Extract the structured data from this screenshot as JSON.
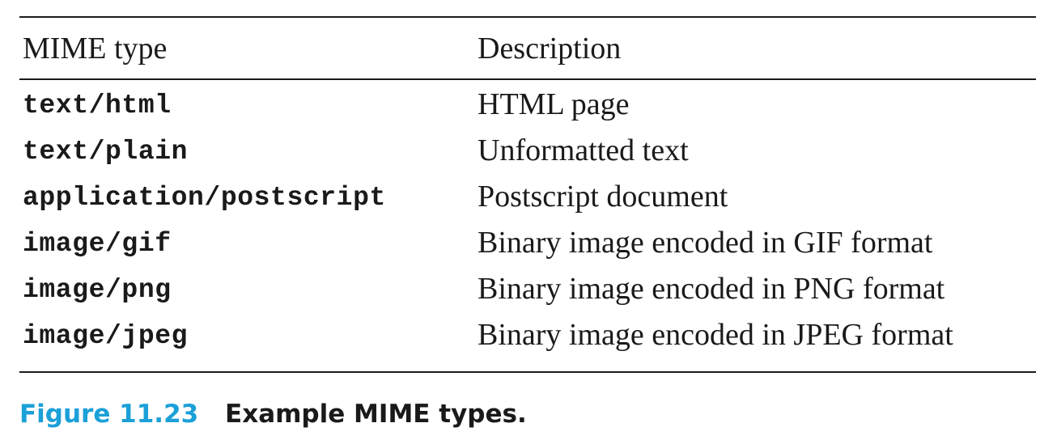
{
  "table": {
    "headers": {
      "mime_type": "MIME type",
      "description": "Description"
    },
    "rows": [
      {
        "mime": "text/html",
        "desc": "HTML page"
      },
      {
        "mime": "text/plain",
        "desc": "Unformatted text"
      },
      {
        "mime": "application/postscript",
        "desc": "Postscript document"
      },
      {
        "mime": "image/gif",
        "desc": "Binary image encoded in GIF format"
      },
      {
        "mime": "image/png",
        "desc": "Binary image encoded in PNG format"
      },
      {
        "mime": "image/jpeg",
        "desc": "Binary image encoded in JPEG format"
      }
    ]
  },
  "caption": {
    "number": "Figure 11.23",
    "text": "Example MIME types."
  },
  "colors": {
    "caption_number": "#1ba0d8",
    "text": "#1a1a1a"
  }
}
